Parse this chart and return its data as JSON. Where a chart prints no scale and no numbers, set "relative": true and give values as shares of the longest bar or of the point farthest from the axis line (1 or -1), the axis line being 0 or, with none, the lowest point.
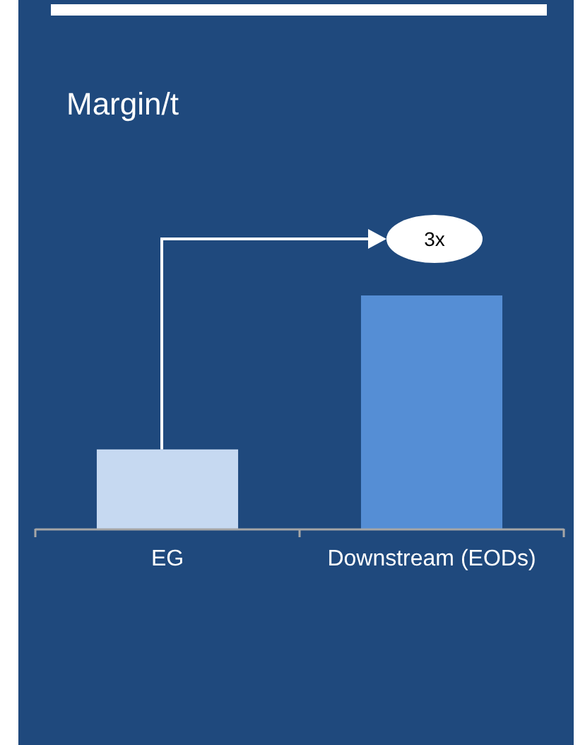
{
  "chart_data": {
    "type": "bar",
    "title": "Margin/t",
    "categories": [
      "EG",
      "Downstream (EODs)"
    ],
    "values": [
      0.34,
      1
    ],
    "colors": [
      "#c6d9f1",
      "#558ed5"
    ],
    "relative": true,
    "annotations": [
      "3x"
    ]
  }
}
